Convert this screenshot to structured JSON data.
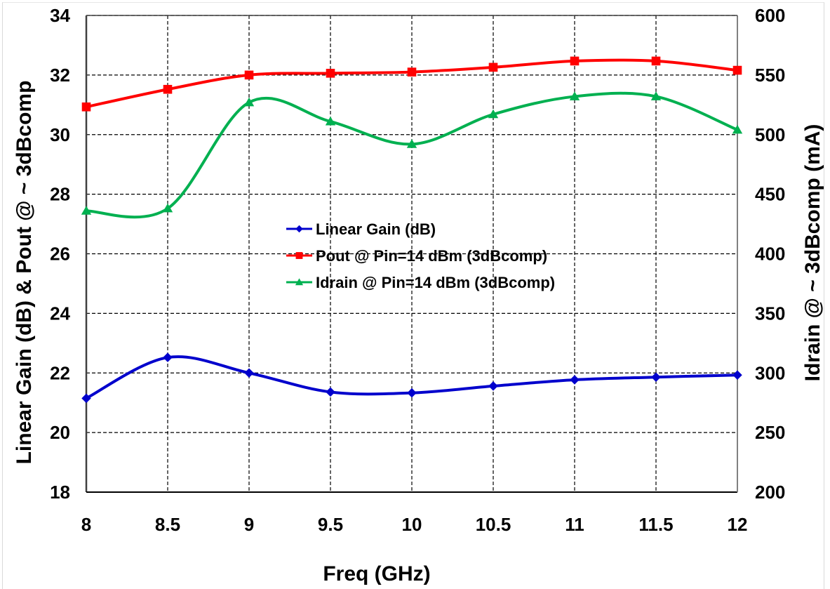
{
  "chart_data": {
    "type": "line",
    "title": "",
    "xlabel": "Freq (GHz)",
    "ylabel": "Linear Gain (dB) & Pout @ ~ 3dBcomp",
    "y2label": "Idrain @ ~ 3dBcomp (mA)",
    "x": [
      8,
      8.5,
      9,
      9.5,
      10,
      10.5,
      11,
      11.5,
      12
    ],
    "xlim": [
      8,
      12
    ],
    "ylim": [
      18,
      34
    ],
    "y2lim": [
      200,
      600
    ],
    "x_ticks": [
      "8",
      "8.5",
      "9",
      "9.5",
      "10",
      "10.5",
      "11",
      "11.5",
      "12"
    ],
    "y_ticks": [
      "18",
      "20",
      "22",
      "24",
      "26",
      "28",
      "30",
      "32",
      "34"
    ],
    "y2_ticks": [
      "200",
      "250",
      "300",
      "350",
      "400",
      "450",
      "500",
      "550",
      "600"
    ],
    "grid": true,
    "legend_position": "center",
    "series": [
      {
        "name": "Linear Gain (dB)",
        "axis": "left",
        "color": "#0000CC",
        "marker": "diamond",
        "values": [
          21.15,
          22.52,
          22.0,
          21.36,
          21.33,
          21.56,
          21.77,
          21.86,
          21.93
        ]
      },
      {
        "name": "Pout @ Pin=14 dBm (3dBcomp)",
        "axis": "left",
        "color": "#FF0000",
        "marker": "square",
        "values": [
          30.93,
          31.52,
          32.0,
          32.06,
          32.1,
          32.26,
          32.47,
          32.47,
          32.16
        ]
      },
      {
        "name": "Idrain @ Pin=14 dBm (3dBcomp)",
        "axis": "right",
        "color": "#00B050",
        "marker": "triangle",
        "values": [
          436,
          438,
          527,
          511,
          492,
          517,
          532,
          532,
          504
        ]
      }
    ]
  }
}
